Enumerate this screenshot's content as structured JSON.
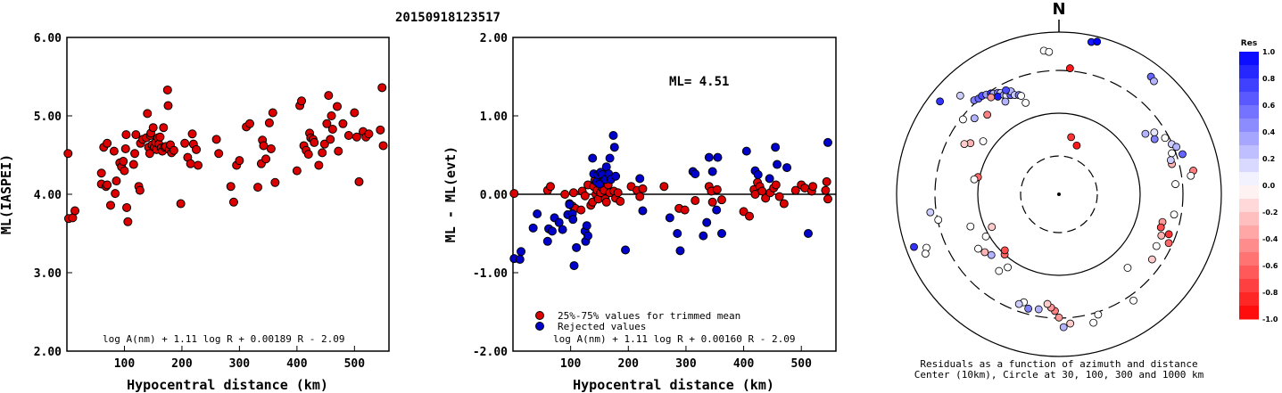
{
  "title": "20150918123517",
  "chart_data": [
    {
      "type": "scatter",
      "id": "left",
      "xlabel": "Hypocentral distance (km)",
      "ylabel": "ML(IASPEI)",
      "xlim": [
        0,
        560
      ],
      "ylim": [
        2,
        6
      ],
      "xticks": [
        100,
        200,
        300,
        400,
        500
      ],
      "yticks": [
        "2.00",
        "3.00",
        "4.00",
        "5.00",
        "6.00"
      ],
      "formula": "log A(nm) + 1.11 log R + 0.00189 R - 2.09",
      "color": "#dd0000",
      "points": [
        [
          2,
          4.52
        ],
        [
          3,
          3.69
        ],
        [
          10,
          3.7
        ],
        [
          14,
          3.79
        ],
        [
          60,
          4.27
        ],
        [
          60,
          4.13
        ],
        [
          64,
          4.6
        ],
        [
          68,
          4.1
        ],
        [
          70,
          4.65
        ],
        [
          70,
          4.12
        ],
        [
          76,
          3.86
        ],
        [
          82,
          4.55
        ],
        [
          84,
          4.01
        ],
        [
          86,
          4.17
        ],
        [
          92,
          4.4
        ],
        [
          95,
          4.35
        ],
        [
          98,
          4.42
        ],
        [
          100,
          4.3
        ],
        [
          102,
          4.58
        ],
        [
          103,
          4.76
        ],
        [
          104,
          3.83
        ],
        [
          106,
          3.65
        ],
        [
          116,
          4.38
        ],
        [
          118,
          4.52
        ],
        [
          120,
          4.76
        ],
        [
          125,
          4.1
        ],
        [
          127,
          4.05
        ],
        [
          128,
          4.65
        ],
        [
          132,
          4.7
        ],
        [
          138,
          4.72
        ],
        [
          140,
          5.03
        ],
        [
          142,
          4.6
        ],
        [
          144,
          4.52
        ],
        [
          145,
          4.75
        ],
        [
          146,
          4.78
        ],
        [
          148,
          4.63
        ],
        [
          150,
          4.85
        ],
        [
          152,
          4.6
        ],
        [
          154,
          4.66
        ],
        [
          156,
          4.57
        ],
        [
          158,
          4.72
        ],
        [
          160,
          4.64
        ],
        [
          162,
          4.73
        ],
        [
          164,
          4.59
        ],
        [
          166,
          4.55
        ],
        [
          168,
          4.85
        ],
        [
          170,
          4.6
        ],
        [
          172,
          4.61
        ],
        [
          175,
          5.33
        ],
        [
          176,
          5.13
        ],
        [
          178,
          4.57
        ],
        [
          180,
          4.63
        ],
        [
          182,
          4.53
        ],
        [
          186,
          4.56
        ],
        [
          198,
          3.88
        ],
        [
          205,
          4.65
        ],
        [
          210,
          4.47
        ],
        [
          215,
          4.39
        ],
        [
          218,
          4.77
        ],
        [
          220,
          4.64
        ],
        [
          225,
          4.57
        ],
        [
          228,
          4.37
        ],
        [
          260,
          4.7
        ],
        [
          264,
          4.52
        ],
        [
          285,
          4.1
        ],
        [
          290,
          3.9
        ],
        [
          295,
          4.37
        ],
        [
          300,
          4.43
        ],
        [
          312,
          4.86
        ],
        [
          318,
          4.9
        ],
        [
          332,
          4.09
        ],
        [
          338,
          4.39
        ],
        [
          340,
          4.69
        ],
        [
          342,
          4.62
        ],
        [
          346,
          4.45
        ],
        [
          352,
          4.91
        ],
        [
          355,
          4.58
        ],
        [
          358,
          5.04
        ],
        [
          362,
          4.15
        ],
        [
          400,
          4.3
        ],
        [
          405,
          5.13
        ],
        [
          408,
          5.19
        ],
        [
          412,
          4.62
        ],
        [
          416,
          4.56
        ],
        [
          420,
          4.51
        ],
        [
          422,
          4.78
        ],
        [
          424,
          4.72
        ],
        [
          428,
          4.7
        ],
        [
          430,
          4.66
        ],
        [
          438,
          4.37
        ],
        [
          444,
          4.53
        ],
        [
          448,
          4.64
        ],
        [
          452,
          4.9
        ],
        [
          455,
          5.26
        ],
        [
          458,
          4.7
        ],
        [
          460,
          5.0
        ],
        [
          462,
          4.83
        ],
        [
          470,
          5.12
        ],
        [
          472,
          4.55
        ],
        [
          480,
          4.9
        ],
        [
          490,
          4.75
        ],
        [
          500,
          5.04
        ],
        [
          504,
          4.73
        ],
        [
          508,
          4.16
        ],
        [
          515,
          4.8
        ],
        [
          520,
          4.73
        ],
        [
          525,
          4.77
        ],
        [
          545,
          4.82
        ],
        [
          548,
          5.36
        ],
        [
          550,
          4.62
        ]
      ]
    },
    {
      "type": "scatter",
      "id": "middle",
      "xlabel": "Hypocentral distance (km)",
      "ylabel": "ML - ML(evt)",
      "xlim": [
        0,
        560
      ],
      "ylim": [
        -2,
        2
      ],
      "xticks": [
        100,
        200,
        300,
        400,
        500
      ],
      "yticks": [
        "-2.00",
        "-1.00",
        "0.00",
        "1.00",
        "2.00"
      ],
      "ml_label": "ML= 4.51",
      "formula": "log A(nm) + 1.11 log R + 0.00160 R - 2.09",
      "legend": [
        "25%-75% values for trimmed mean",
        "Rejected values"
      ],
      "kept": [
        [
          2,
          0.01
        ],
        [
          60,
          0.05
        ],
        [
          65,
          0.1
        ],
        [
          90,
          0.0
        ],
        [
          98,
          -0.12
        ],
        [
          103,
          -0.15
        ],
        [
          105,
          0.02
        ],
        [
          108,
          -0.18
        ],
        [
          118,
          -0.2
        ],
        [
          120,
          0.04
        ],
        [
          125,
          -0.02
        ],
        [
          130,
          0.12
        ],
        [
          135,
          -0.14
        ],
        [
          138,
          -0.1
        ],
        [
          140,
          0.1
        ],
        [
          142,
          0.18
        ],
        [
          144,
          0.0
        ],
        [
          146,
          0.05
        ],
        [
          148,
          -0.06
        ],
        [
          150,
          0.15
        ],
        [
          152,
          0.02
        ],
        [
          155,
          0.08
        ],
        [
          158,
          0.05
        ],
        [
          160,
          -0.06
        ],
        [
          162,
          -0.1
        ],
        [
          165,
          0.12
        ],
        [
          168,
          0.02
        ],
        [
          170,
          0.2
        ],
        [
          175,
          0.04
        ],
        [
          178,
          -0.05
        ],
        [
          182,
          0.02
        ],
        [
          186,
          -0.09
        ],
        [
          205,
          0.1
        ],
        [
          215,
          0.05
        ],
        [
          220,
          -0.03
        ],
        [
          225,
          0.07
        ],
        [
          262,
          0.1
        ],
        [
          288,
          -0.18
        ],
        [
          298,
          -0.2
        ],
        [
          316,
          -0.08
        ],
        [
          340,
          0.1
        ],
        [
          344,
          0.04
        ],
        [
          346,
          -0.1
        ],
        [
          354,
          0.06
        ],
        [
          362,
          -0.07
        ],
        [
          400,
          -0.22
        ],
        [
          410,
          -0.28
        ],
        [
          418,
          0.06
        ],
        [
          420,
          0.0
        ],
        [
          424,
          0.15
        ],
        [
          428,
          0.1
        ],
        [
          432,
          0.04
        ],
        [
          438,
          -0.05
        ],
        [
          446,
          0.02
        ],
        [
          452,
          0.08
        ],
        [
          456,
          0.12
        ],
        [
          462,
          -0.03
        ],
        [
          470,
          -0.12
        ],
        [
          490,
          0.05
        ],
        [
          500,
          0.12
        ],
        [
          506,
          0.08
        ],
        [
          518,
          0.04
        ],
        [
          520,
          0.1
        ],
        [
          542,
          0.05
        ],
        [
          544,
          0.16
        ],
        [
          546,
          -0.06
        ]
      ],
      "rejected": [
        [
          2,
          -0.82
        ],
        [
          12,
          -0.83
        ],
        [
          14,
          -0.73
        ],
        [
          35,
          -0.43
        ],
        [
          42,
          -0.25
        ],
        [
          60,
          -0.6
        ],
        [
          62,
          -0.44
        ],
        [
          68,
          -0.47
        ],
        [
          72,
          -0.3
        ],
        [
          80,
          -0.36
        ],
        [
          86,
          -0.45
        ],
        [
          95,
          -0.26
        ],
        [
          98,
          -0.13
        ],
        [
          103,
          -0.25
        ],
        [
          104,
          -0.32
        ],
        [
          106,
          -0.91
        ],
        [
          110,
          -0.68
        ],
        [
          125,
          -0.47
        ],
        [
          126,
          -0.6
        ],
        [
          128,
          -0.4
        ],
        [
          130,
          -0.53
        ],
        [
          138,
          0.46
        ],
        [
          140,
          0.26
        ],
        [
          145,
          0.16
        ],
        [
          147,
          0.25
        ],
        [
          150,
          0.13
        ],
        [
          152,
          0.28
        ],
        [
          155,
          0.25
        ],
        [
          160,
          0.19
        ],
        [
          162,
          0.35
        ],
        [
          166,
          0.26
        ],
        [
          168,
          0.46
        ],
        [
          170,
          0.19
        ],
        [
          174,
          0.75
        ],
        [
          176,
          0.6
        ],
        [
          178,
          0.23
        ],
        [
          195,
          -0.71
        ],
        [
          220,
          0.2
        ],
        [
          225,
          -0.21
        ],
        [
          272,
          -0.3
        ],
        [
          285,
          -0.5
        ],
        [
          290,
          -0.72
        ],
        [
          312,
          0.29
        ],
        [
          316,
          0.26
        ],
        [
          330,
          -0.53
        ],
        [
          336,
          -0.36
        ],
        [
          340,
          0.47
        ],
        [
          346,
          0.29
        ],
        [
          353,
          -0.2
        ],
        [
          355,
          0.47
        ],
        [
          362,
          -0.5
        ],
        [
          405,
          0.55
        ],
        [
          420,
          0.3
        ],
        [
          425,
          0.25
        ],
        [
          445,
          0.2
        ],
        [
          455,
          0.6
        ],
        [
          458,
          0.38
        ],
        [
          475,
          0.34
        ],
        [
          512,
          -0.5
        ],
        [
          546,
          0.66
        ]
      ]
    },
    {
      "type": "polar-scatter",
      "id": "right",
      "north_label": "N",
      "caption1": "Residuals as a function of azimuth and distance",
      "caption2": "Center (10km), Circle at 30, 100, 300 and 1000 km",
      "colorbar_title": "Res",
      "colorbar_ticks": [
        "1.0",
        "0.8",
        "0.6",
        "0.4",
        "0.2",
        "0.0",
        "-0.2",
        "-0.4",
        "-0.6",
        "-0.8",
        "-1.0"
      ],
      "note": "points given as [azimuth_deg, radius_fraction, residual]",
      "points": [
        [
          12,
          0.96,
          0.9
        ],
        [
          14,
          0.97,
          1.0
        ],
        [
          -6,
          0.89,
          0.0
        ],
        [
          -4,
          0.88,
          0.0
        ],
        [
          38,
          0.92,
          0.6
        ],
        [
          40,
          0.91,
          0.3
        ],
        [
          -52,
          0.93,
          0.8
        ],
        [
          -45,
          0.86,
          0.2
        ],
        [
          -42,
          0.78,
          0.5
        ],
        [
          -40,
          0.77,
          0.6
        ],
        [
          -38,
          0.77,
          0.7
        ],
        [
          -36,
          0.76,
          0.4
        ],
        [
          -34,
          0.75,
          0.8
        ],
        [
          -33,
          0.74,
          0.3
        ],
        [
          -31,
          0.73,
          0.5
        ],
        [
          -30,
          0.72,
          0.2
        ],
        [
          -32,
          0.71,
          0.9
        ],
        [
          -29,
          0.7,
          0.4
        ],
        [
          -28,
          0.69,
          0.1
        ],
        [
          -26,
          0.68,
          0.6
        ],
        [
          -25,
          0.7,
          0.3
        ],
        [
          -27,
          0.72,
          0.7
        ],
        [
          -24,
          0.67,
          0.2
        ],
        [
          -22,
          0.66,
          0.5
        ],
        [
          -21,
          0.65,
          0.0
        ],
        [
          -35,
          0.73,
          -0.4
        ],
        [
          -30,
          0.66,
          0.3
        ],
        [
          -20,
          0.6,
          0.0
        ],
        [
          -42,
          0.66,
          -0.5
        ],
        [
          -48,
          0.7,
          0.3
        ],
        [
          -52,
          0.75,
          0.0
        ],
        [
          -60,
          0.63,
          -0.3
        ],
        [
          -62,
          0.66,
          -0.2
        ],
        [
          -78,
          0.51,
          -0.6
        ],
        [
          -80,
          0.53,
          0.0
        ],
        [
          55,
          0.65,
          0.3
        ],
        [
          57,
          0.7,
          0.1
        ],
        [
          60,
          0.68,
          0.5
        ],
        [
          62,
          0.74,
          0.0
        ],
        [
          66,
          0.76,
          0.2
        ],
        [
          68,
          0.78,
          0.3
        ],
        [
          70,
          0.74,
          0.0
        ],
        [
          72,
          0.8,
          0.6
        ],
        [
          75,
          0.72,
          -0.3
        ],
        [
          73,
          0.72,
          0.2
        ],
        [
          80,
          0.84,
          -0.5
        ],
        [
          82,
          0.82,
          0.0
        ],
        [
          85,
          0.72,
          0.0
        ],
        [
          100,
          0.72,
          0.0
        ],
        [
          105,
          0.66,
          -0.4
        ],
        [
          108,
          0.66,
          -0.7
        ],
        [
          110,
          0.72,
          -0.8
        ],
        [
          112,
          0.68,
          -0.3
        ],
        [
          114,
          0.74,
          -0.6
        ],
        [
          118,
          0.68,
          0.0
        ],
        [
          125,
          0.7,
          -0.2
        ],
        [
          137,
          0.62,
          0.0
        ],
        [
          145,
          0.8,
          0.0
        ],
        [
          162,
          0.78,
          0.0
        ],
        [
          165,
          0.82,
          0.0
        ],
        [
          175,
          0.8,
          -0.2
        ],
        [
          178,
          0.82,
          0.3
        ],
        [
          180,
          0.76,
          -0.4
        ],
        [
          182,
          0.72,
          -0.5
        ],
        [
          184,
          0.7,
          -0.4
        ],
        [
          186,
          0.68,
          -0.2
        ],
        [
          190,
          0.72,
          0.3
        ],
        [
          195,
          0.73,
          0.5
        ],
        [
          198,
          0.7,
          0.0
        ],
        [
          200,
          0.72,
          0.2
        ],
        [
          215,
          0.55,
          0.0
        ],
        [
          218,
          0.6,
          0.0
        ],
        [
          222,
          0.5,
          -0.6
        ],
        [
          224,
          0.48,
          -0.7
        ],
        [
          228,
          0.56,
          0.3
        ],
        [
          232,
          0.58,
          -0.3
        ],
        [
          236,
          0.6,
          0.0
        ],
        [
          240,
          0.52,
          0.0
        ],
        [
          244,
          0.46,
          -0.2
        ],
        [
          250,
          0.58,
          0.0
        ],
        [
          258,
          0.76,
          0.0
        ],
        [
          262,
          0.8,
          0.2
        ],
        [
          248,
          0.88,
          0.0
        ],
        [
          246,
          0.9,
          0.0
        ],
        [
          250,
          0.95,
          0.8
        ],
        [
          12,
          0.36,
          -0.8
        ],
        [
          20,
          0.32,
          -0.9
        ],
        [
          5,
          0.78,
          -0.9
        ],
        [
          -55,
          0.57,
          0.0
        ]
      ]
    }
  ]
}
